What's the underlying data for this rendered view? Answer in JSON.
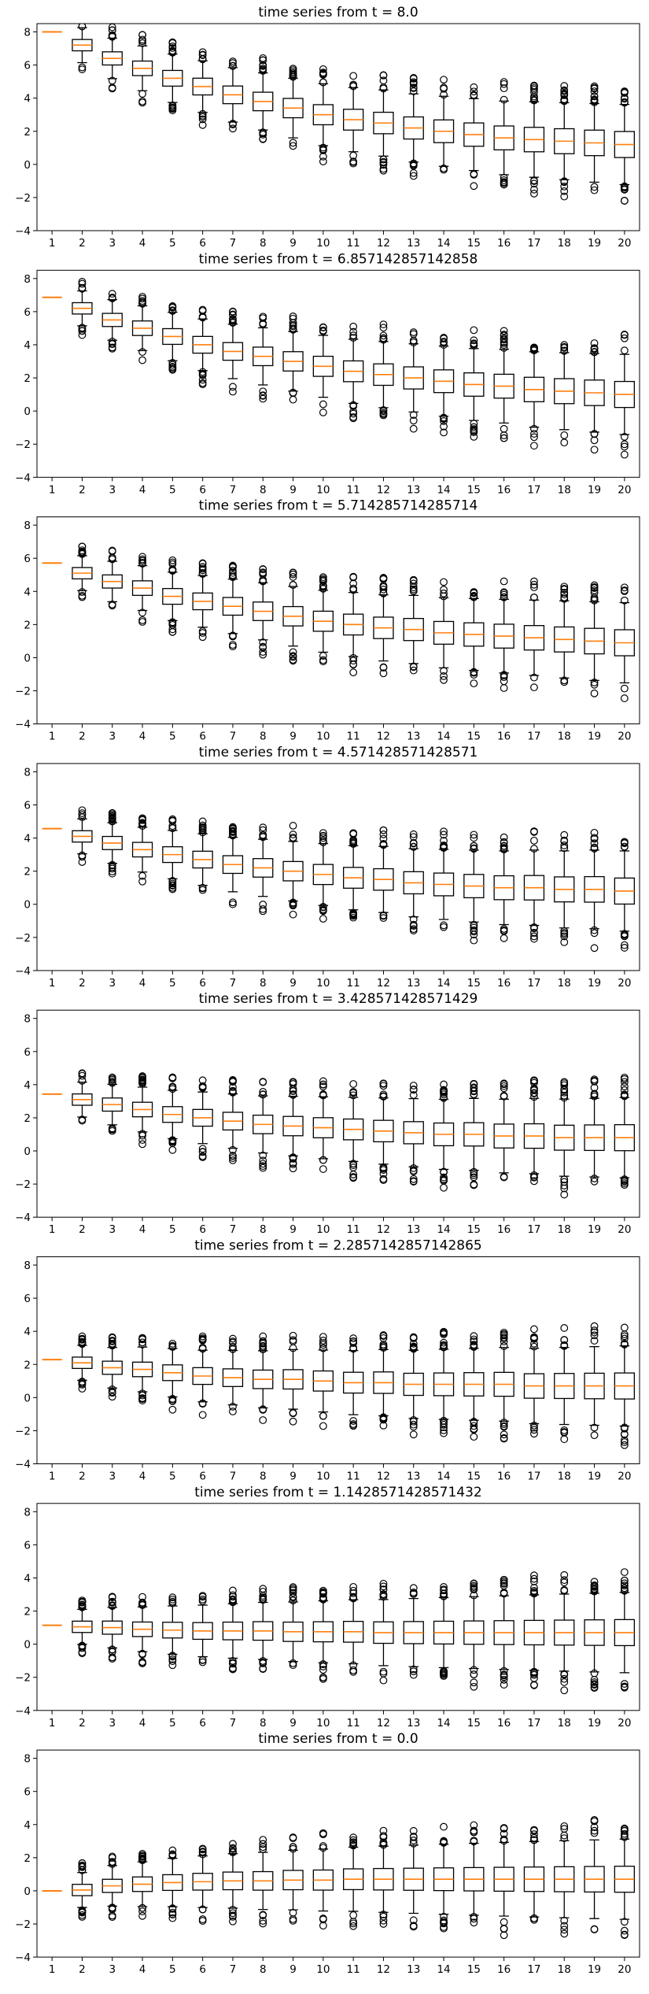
{
  "colors": {
    "box": "#000000",
    "median": "#ff7f0e",
    "background": "#ffffff"
  },
  "chart_data": [
    {
      "type": "boxplot",
      "title": "time series from t = 8.0",
      "categories": [
        "1",
        "2",
        "3",
        "4",
        "5",
        "6",
        "7",
        "8",
        "9",
        "10",
        "11",
        "12",
        "13",
        "14",
        "15",
        "16",
        "17",
        "18",
        "19",
        "20"
      ],
      "yticks": [
        "−4",
        "−2",
        "0",
        "2",
        "4",
        "6",
        "8"
      ],
      "ylim": [
        -4,
        8.5
      ],
      "grid": false,
      "medians": [
        8.0,
        7.2,
        6.4,
        5.8,
        5.2,
        4.7,
        4.2,
        3.8,
        3.4,
        3.0,
        2.7,
        2.5,
        2.2,
        2.0,
        1.8,
        1.6,
        1.5,
        1.4,
        1.3,
        1.2
      ]
    },
    {
      "type": "boxplot",
      "title": "time series from t = 6.857142857142858",
      "categories": [
        "1",
        "2",
        "3",
        "4",
        "5",
        "6",
        "7",
        "8",
        "9",
        "10",
        "11",
        "12",
        "13",
        "14",
        "15",
        "16",
        "17",
        "18",
        "19",
        "20"
      ],
      "yticks": [
        "−4",
        "−2",
        "0",
        "2",
        "4",
        "6",
        "8"
      ],
      "ylim": [
        -4,
        8.5
      ],
      "grid": false,
      "medians": [
        6.86,
        6.2,
        5.5,
        5.0,
        4.5,
        4.0,
        3.6,
        3.3,
        3.0,
        2.7,
        2.4,
        2.2,
        2.0,
        1.8,
        1.6,
        1.5,
        1.3,
        1.2,
        1.1,
        1.0
      ]
    },
    {
      "type": "boxplot",
      "title": "time series from t = 5.714285714285714",
      "categories": [
        "1",
        "2",
        "3",
        "4",
        "5",
        "6",
        "7",
        "8",
        "9",
        "10",
        "11",
        "12",
        "13",
        "14",
        "15",
        "16",
        "17",
        "18",
        "19",
        "20"
      ],
      "yticks": [
        "−4",
        "−2",
        "0",
        "2",
        "4",
        "6",
        "8"
      ],
      "ylim": [
        -4,
        8.5
      ],
      "grid": false,
      "medians": [
        5.71,
        5.1,
        4.6,
        4.2,
        3.7,
        3.4,
        3.1,
        2.8,
        2.5,
        2.2,
        2.0,
        1.8,
        1.7,
        1.5,
        1.4,
        1.3,
        1.2,
        1.1,
        1.0,
        0.9
      ]
    },
    {
      "type": "boxplot",
      "title": "time series from t = 4.571428571428571",
      "categories": [
        "1",
        "2",
        "3",
        "4",
        "5",
        "6",
        "7",
        "8",
        "9",
        "10",
        "11",
        "12",
        "13",
        "14",
        "15",
        "16",
        "17",
        "18",
        "19",
        "20"
      ],
      "yticks": [
        "−4",
        "−2",
        "0",
        "2",
        "4",
        "6",
        "8"
      ],
      "ylim": [
        -4,
        8.5
      ],
      "grid": false,
      "medians": [
        4.57,
        4.1,
        3.7,
        3.3,
        3.0,
        2.7,
        2.4,
        2.2,
        2.0,
        1.8,
        1.6,
        1.5,
        1.3,
        1.2,
        1.1,
        1.0,
        1.0,
        0.9,
        0.9,
        0.8
      ]
    },
    {
      "type": "boxplot",
      "title": "time series from t = 3.428571428571429",
      "categories": [
        "1",
        "2",
        "3",
        "4",
        "5",
        "6",
        "7",
        "8",
        "9",
        "10",
        "11",
        "12",
        "13",
        "14",
        "15",
        "16",
        "17",
        "18",
        "19",
        "20"
      ],
      "yticks": [
        "−4",
        "−2",
        "0",
        "2",
        "4",
        "6",
        "8"
      ],
      "ylim": [
        -4,
        8.5
      ],
      "grid": false,
      "medians": [
        3.43,
        3.1,
        2.8,
        2.5,
        2.2,
        2.0,
        1.8,
        1.6,
        1.5,
        1.4,
        1.3,
        1.2,
        1.1,
        1.0,
        1.0,
        0.9,
        0.9,
        0.8,
        0.8,
        0.8
      ]
    },
    {
      "type": "boxplot",
      "title": "time series from t = 2.2857142857142865",
      "categories": [
        "1",
        "2",
        "3",
        "4",
        "5",
        "6",
        "7",
        "8",
        "9",
        "10",
        "11",
        "12",
        "13",
        "14",
        "15",
        "16",
        "17",
        "18",
        "19",
        "20"
      ],
      "yticks": [
        "−4",
        "−2",
        "0",
        "2",
        "4",
        "6",
        "8"
      ],
      "ylim": [
        -4,
        8.5
      ],
      "grid": false,
      "medians": [
        2.29,
        2.1,
        1.8,
        1.7,
        1.5,
        1.3,
        1.2,
        1.1,
        1.1,
        1.0,
        0.9,
        0.9,
        0.8,
        0.8,
        0.8,
        0.8,
        0.7,
        0.7,
        0.7,
        0.7
      ]
    },
    {
      "type": "boxplot",
      "title": "time series from t = 1.1428571428571432",
      "categories": [
        "1",
        "2",
        "3",
        "4",
        "5",
        "6",
        "7",
        "8",
        "9",
        "10",
        "11",
        "12",
        "13",
        "14",
        "15",
        "16",
        "17",
        "18",
        "19",
        "20"
      ],
      "yticks": [
        "−4",
        "−2",
        "0",
        "2",
        "4",
        "6",
        "8"
      ],
      "ylim": [
        -4,
        8.5
      ],
      "grid": false,
      "medians": [
        1.14,
        1.05,
        1.0,
        0.9,
        0.85,
        0.8,
        0.8,
        0.8,
        0.75,
        0.75,
        0.75,
        0.7,
        0.7,
        0.7,
        0.7,
        0.7,
        0.7,
        0.7,
        0.7,
        0.7
      ]
    },
    {
      "type": "boxplot",
      "title": "time series from t = 0.0",
      "categories": [
        "1",
        "2",
        "3",
        "4",
        "5",
        "6",
        "7",
        "8",
        "9",
        "10",
        "11",
        "12",
        "13",
        "14",
        "15",
        "16",
        "17",
        "18",
        "19",
        "20"
      ],
      "yticks": [
        "−4",
        "−2",
        "0",
        "2",
        "4",
        "6",
        "8"
      ],
      "ylim": [
        -4,
        8.5
      ],
      "grid": false,
      "medians": [
        0.0,
        0.05,
        0.3,
        0.4,
        0.5,
        0.55,
        0.6,
        0.6,
        0.65,
        0.65,
        0.7,
        0.7,
        0.7,
        0.7,
        0.7,
        0.7,
        0.7,
        0.7,
        0.7,
        0.7
      ]
    }
  ]
}
